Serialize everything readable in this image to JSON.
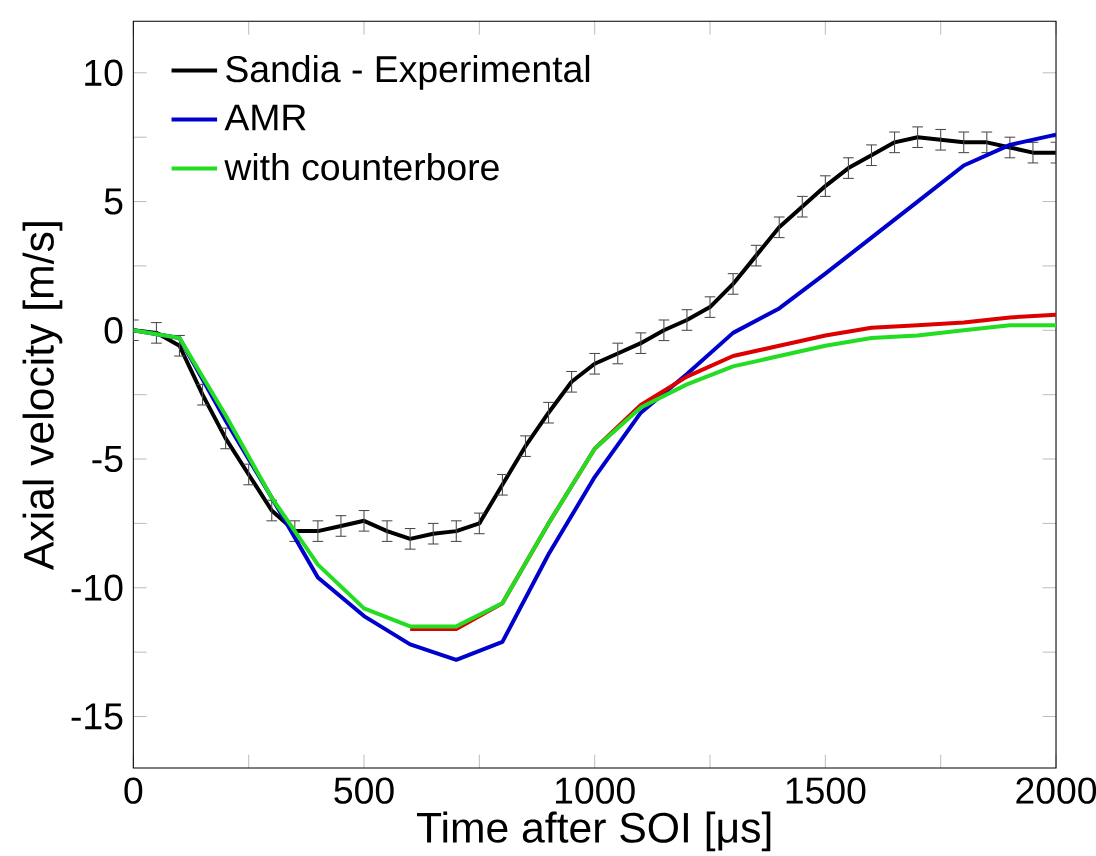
{
  "chart_data": {
    "type": "line",
    "xlabel": "Time after SOI [μs]",
    "ylabel": "Axial velocity [m/s]",
    "xlim": [
      0,
      2000
    ],
    "ylim": [
      -17,
      12
    ],
    "xticks": [
      0,
      {
        "value": 250,
        "label": null
      },
      500,
      {
        "value": 750,
        "label": null
      },
      1000,
      {
        "value": 1250,
        "label": null
      },
      1500,
      {
        "value": 1750,
        "label": null
      },
      2000
    ],
    "yticks": [
      -15,
      {
        "value": -12.5,
        "label": null
      },
      -10,
      {
        "value": -7.5,
        "label": null
      },
      -5,
      {
        "value": -2.5,
        "label": null
      },
      0,
      {
        "value": 2.5,
        "label": null
      },
      5,
      {
        "value": 7.5,
        "label": null
      },
      10
    ],
    "grid": false,
    "legend": "top left",
    "marker": "none",
    "line_style": "solid",
    "series": [
      {
        "name": "Sandia - Experimental",
        "color": "#000000",
        "x": [
          0,
          50,
          100,
          150,
          200,
          250,
          300,
          350,
          400,
          450,
          500,
          550,
          600,
          650,
          700,
          750,
          800,
          850,
          900,
          950,
          1000,
          1050,
          1100,
          1150,
          1200,
          1250,
          1300,
          1350,
          1400,
          1450,
          1500,
          1550,
          1600,
          1650,
          1700,
          1750,
          1800,
          1850,
          1900,
          1950,
          2000
        ],
        "values": [
          0,
          -0.1,
          -0.6,
          -2.5,
          -4.2,
          -5.6,
          -7.0,
          -7.8,
          -7.8,
          -7.6,
          -7.4,
          -7.8,
          -8.1,
          -7.9,
          -7.8,
          -7.5,
          -6.0,
          -4.5,
          -3.2,
          -2.0,
          -1.3,
          -0.9,
          -0.5,
          0,
          0.4,
          0.9,
          1.8,
          2.9,
          4.0,
          4.8,
          5.6,
          6.3,
          6.8,
          7.3,
          7.5,
          7.4,
          7.3,
          7.3,
          7.1,
          6.9,
          6.9
        ],
        "errors": [
          0.4,
          0.4,
          0.4,
          0.4,
          0.4,
          0.4,
          0.4,
          0.4,
          0.4,
          0.4,
          0.4,
          0.4,
          0.4,
          0.4,
          0.4,
          0.4,
          0.4,
          0.4,
          0.4,
          0.4,
          0.4,
          0.4,
          0.4,
          0.4,
          0.4,
          0.4,
          0.4,
          0.4,
          0.4,
          0.4,
          0.4,
          0.4,
          0.4,
          0.4,
          0.4,
          0.4,
          0.4,
          0.4,
          0.4,
          0.4,
          0.4
        ]
      },
      {
        "name": "AMR",
        "color": "#0000cc",
        "x": [
          0,
          100,
          200,
          300,
          400,
          500,
          600,
          700,
          800,
          900,
          1000,
          1100,
          1200,
          1300,
          1400,
          1500,
          1600,
          1700,
          1800,
          1900,
          2000
        ],
        "values": [
          0,
          -0.3,
          -3.5,
          -6.5,
          -9.6,
          -11.1,
          -12.2,
          -12.8,
          -12.1,
          -8.7,
          -5.7,
          -3.2,
          -1.7,
          -0.1,
          0.85,
          2.2,
          3.6,
          5.0,
          6.4,
          7.2,
          7.6
        ]
      },
      {
        "color": "#dd0000",
        "x": [
          600,
          700,
          800,
          900,
          1000,
          1100,
          1200,
          1300,
          1400,
          1500,
          1600,
          1700,
          1800,
          1900,
          2000
        ],
        "values": [
          -11.6,
          -11.6,
          -10.6,
          -7.5,
          -4.6,
          -2.9,
          -1.8,
          -1.0,
          -0.6,
          -0.2,
          0.1,
          0.2,
          0.3,
          0.5,
          0.6
        ]
      },
      {
        "name": "with counterbore",
        "color": "#22dd22",
        "x": [
          0,
          100,
          200,
          300,
          400,
          500,
          600,
          700,
          800,
          900,
          1000,
          1100,
          1200,
          1300,
          1400,
          1500,
          1600,
          1700,
          1800,
          1900,
          2000
        ],
        "values": [
          0,
          -0.3,
          -3.3,
          -6.5,
          -9.1,
          -10.8,
          -11.5,
          -11.5,
          -10.6,
          -7.5,
          -4.6,
          -3.0,
          -2.1,
          -1.4,
          -1.0,
          -0.6,
          -0.3,
          -0.2,
          0,
          0.2,
          0.2
        ]
      }
    ]
  }
}
